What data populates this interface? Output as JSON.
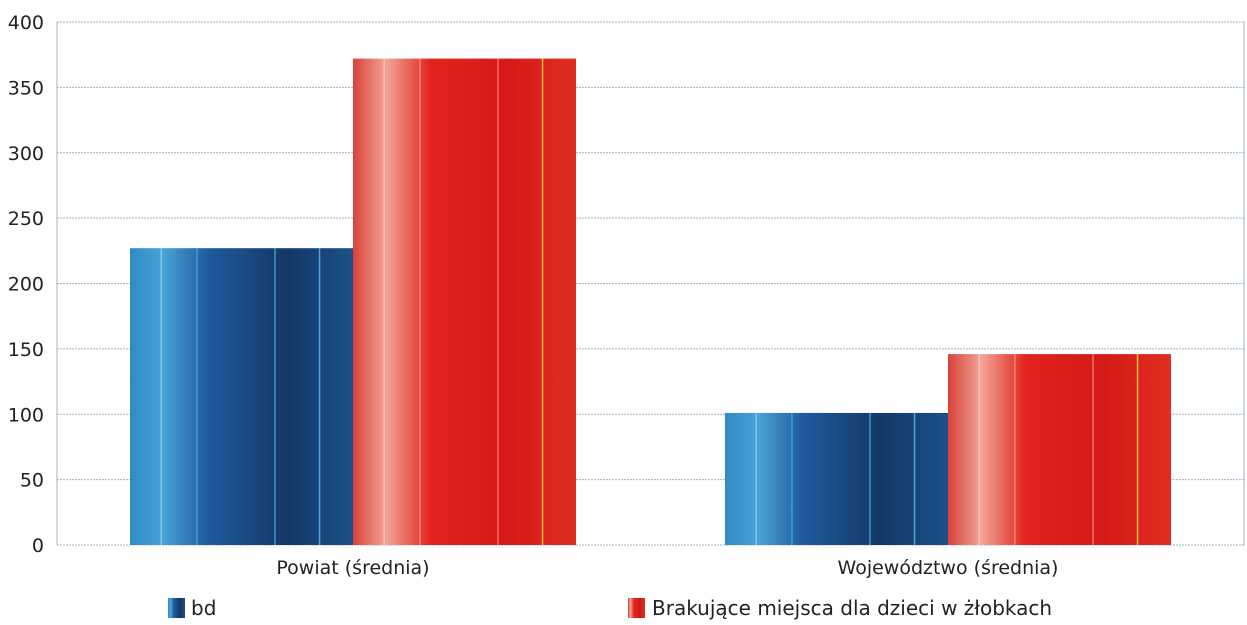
{
  "chart_data": {
    "type": "bar",
    "categories": [
      "Powiat (średnia)",
      "Województwo (średnia)"
    ],
    "series": [
      {
        "name": "bd",
        "values": [
          227,
          101
        ]
      },
      {
        "name": "Brakujące miejsca dla dzieci w żłobkach",
        "values": [
          372,
          146
        ]
      }
    ],
    "ylim": [
      0,
      400
    ],
    "yticks": [
      0,
      50,
      100,
      150,
      200,
      250,
      300,
      350,
      400
    ],
    "grid": true,
    "legend_position": "bottom"
  },
  "colors": {
    "series_1": "#1f4f8f",
    "series_2": "#d8221c",
    "grid": "#9fb3c8"
  }
}
